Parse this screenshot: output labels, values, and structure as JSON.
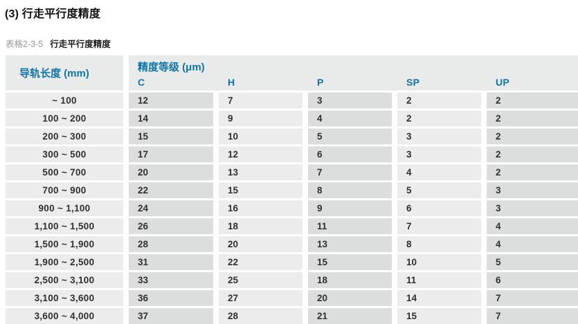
{
  "page": {
    "title": "(3) 行走平行度精度",
    "caption_prefix": "表格2-3-5",
    "caption_text": "行走平行度精度"
  },
  "table": {
    "rail_header": "导轨长度 (mm)",
    "grade_header": "精度等级 (μm)",
    "grades": [
      "C",
      "H",
      "P",
      "SP",
      "UP"
    ],
    "rows": [
      {
        "length": "~ 100",
        "values": [
          12,
          7,
          3,
          2,
          2
        ]
      },
      {
        "length": "100 ~ 200",
        "values": [
          14,
          9,
          4,
          2,
          2
        ]
      },
      {
        "length": "200 ~ 300",
        "values": [
          15,
          10,
          5,
          3,
          2
        ]
      },
      {
        "length": "300 ~ 500",
        "values": [
          17,
          12,
          6,
          3,
          2
        ]
      },
      {
        "length": "500 ~ 700",
        "values": [
          20,
          13,
          7,
          4,
          2
        ]
      },
      {
        "length": "700 ~ 900",
        "values": [
          22,
          15,
          8,
          5,
          3
        ]
      },
      {
        "length": "900 ~ 1,100",
        "values": [
          24,
          16,
          9,
          6,
          3
        ]
      },
      {
        "length": "1,100 ~ 1,500",
        "values": [
          26,
          18,
          11,
          7,
          4
        ]
      },
      {
        "length": "1,500 ~ 1,900",
        "values": [
          28,
          20,
          13,
          8,
          4
        ]
      },
      {
        "length": "1,900 ~ 2,500",
        "values": [
          31,
          22,
          15,
          10,
          5
        ]
      },
      {
        "length": "2,500 ~ 3,100",
        "values": [
          33,
          25,
          18,
          11,
          6
        ]
      },
      {
        "length": "3,100 ~ 3,600",
        "values": [
          36,
          27,
          20,
          14,
          7
        ]
      },
      {
        "length": "3,600 ~ 4,000",
        "values": [
          37,
          28,
          21,
          15,
          7
        ]
      }
    ]
  },
  "colors": {
    "accent_blue": "#0e76a8",
    "header_bg": "#e9eaea",
    "cell_light": "#ececec",
    "cell_dark": "#dcdddd"
  }
}
